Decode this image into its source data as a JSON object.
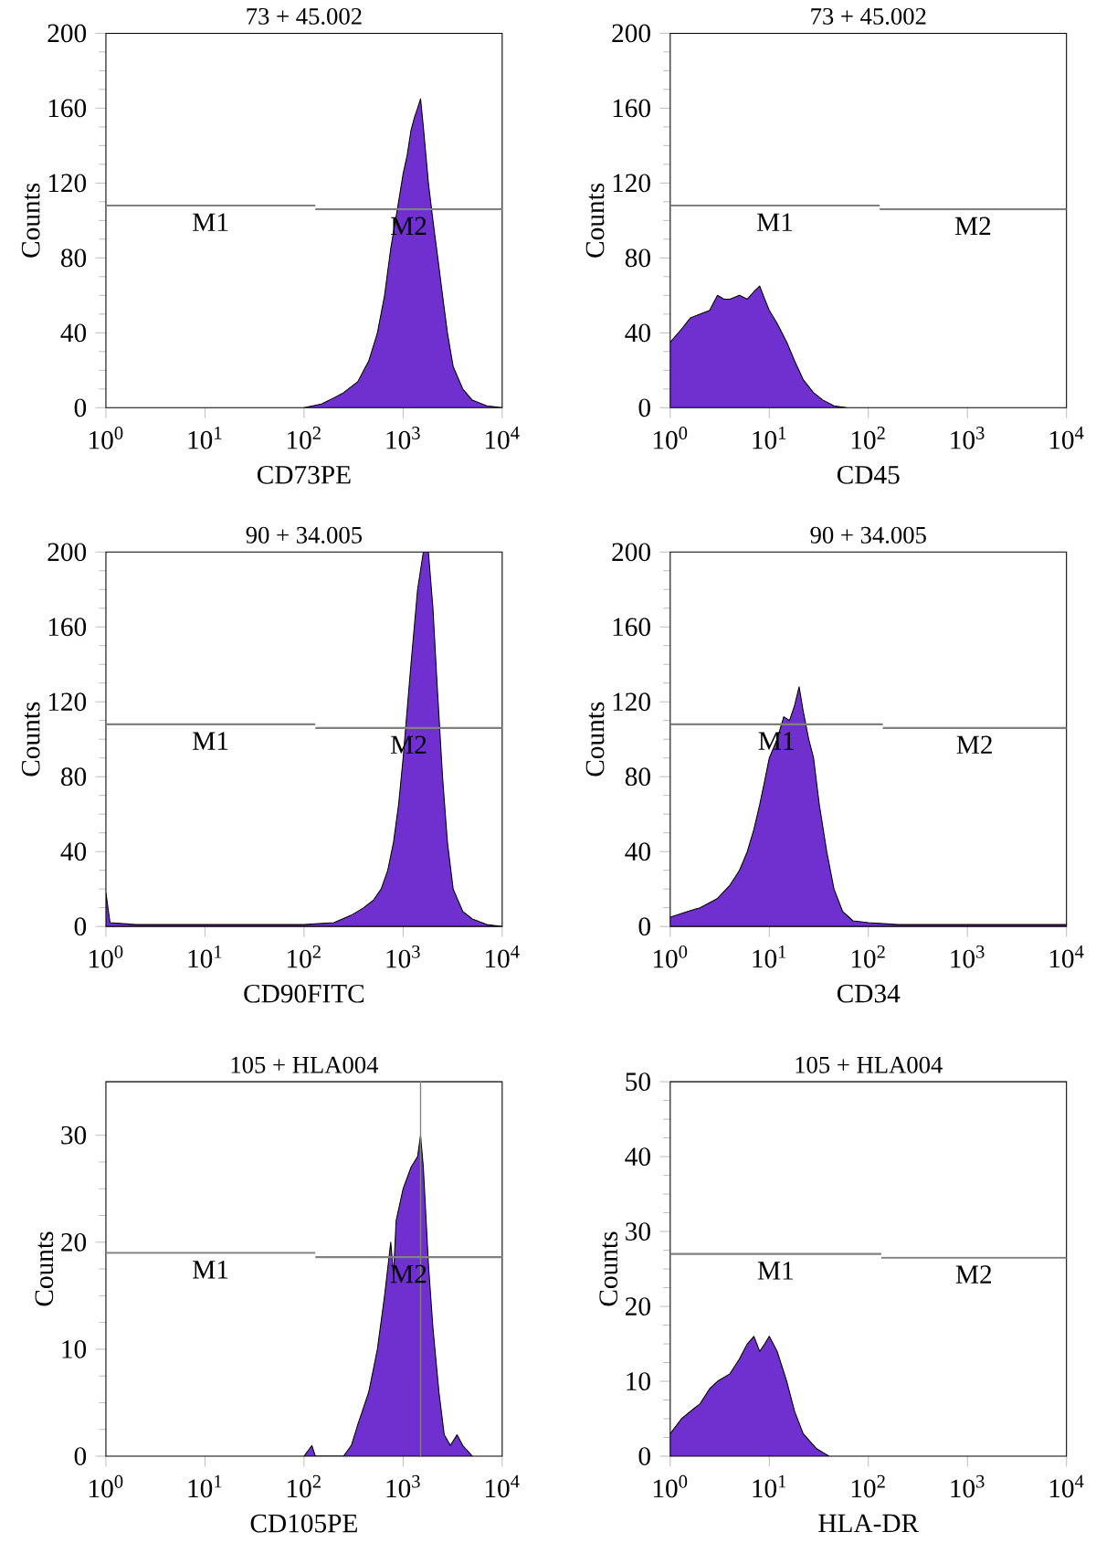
{
  "chart_data": [
    {
      "type": "area",
      "title": "73 + 45.002",
      "xlabel": "CD73PE",
      "ylabel": "Counts",
      "log": "x",
      "xlim": [
        1,
        10000
      ],
      "xticks": [
        {
          "value": 1,
          "label": "10$^{0}$"
        },
        {
          "value": 10,
          "label": "10$^{1}$"
        },
        {
          "value": 100,
          "label": "10$^{2}$"
        },
        {
          "value": 1000,
          "label": "10$^{3}$"
        },
        {
          "value": 10000,
          "label": "10$^{4}$"
        }
      ],
      "ylim": [
        0,
        200
      ],
      "yticks": [
        0,
        40,
        80,
        120,
        160,
        200
      ],
      "series": [
        {
          "color": "#7030d0",
          "x": [
            100,
            150,
            180,
            250,
            350,
            450,
            550,
            650,
            750,
            900,
            1000,
            1100,
            1200,
            1300,
            1400,
            1500,
            1600,
            1800,
            2000,
            2240,
            2500,
            2800,
            3200,
            4000,
            5000,
            7000,
            10000
          ],
          "values": [
            0,
            2,
            4,
            8,
            14,
            25,
            40,
            60,
            85,
            110,
            125,
            135,
            148,
            155,
            160,
            165,
            150,
            120,
            100,
            80,
            60,
            40,
            22,
            10,
            4,
            1,
            0
          ]
        },
        {
          "type": "line",
          "color": "#808080",
          "x": [
            1,
            130
          ],
          "values": [
            108,
            108
          ]
        },
        {
          "type": "line",
          "color": "#808080",
          "x": [
            130,
            10000
          ],
          "values": [
            106,
            106
          ]
        }
      ],
      "annotations": [
        "M1",
        "M2"
      ]
    },
    {
      "type": "area",
      "title": "73 + 45.002",
      "xlabel": "CD45",
      "ylabel": "Counts",
      "log": "x",
      "xlim": [
        1,
        10000
      ],
      "xticks": [
        {
          "value": 1,
          "label": "10$^{0}$"
        },
        {
          "value": 10,
          "label": "10$^{1}$"
        },
        {
          "value": 100,
          "label": "10$^{2}$"
        },
        {
          "value": 1000,
          "label": "10$^{3}$"
        },
        {
          "value": 10000,
          "label": "10$^{4}$"
        }
      ],
      "ylim": [
        0,
        200
      ],
      "yticks": [
        0,
        40,
        80,
        120,
        160,
        200
      ],
      "series": [
        {
          "color": "#7030d0",
          "x": [
            1,
            1.3,
            1.6,
            2,
            2.5,
            3,
            3.5,
            4,
            5,
            6,
            7,
            8,
            9,
            10,
            12,
            15,
            18,
            22,
            28,
            35,
            45,
            60
          ],
          "values": [
            35,
            42,
            48,
            50,
            52,
            60,
            58,
            58,
            60,
            58,
            62,
            65,
            58,
            52,
            45,
            35,
            25,
            15,
            8,
            4,
            1,
            0
          ]
        },
        {
          "type": "line",
          "color": "#808080",
          "x": [
            1,
            130
          ],
          "values": [
            108,
            108
          ]
        },
        {
          "type": "line",
          "color": "#808080",
          "x": [
            130,
            10000
          ],
          "values": [
            106,
            106
          ]
        }
      ],
      "annotations": [
        "M1",
        "M2"
      ]
    },
    {
      "type": "area",
      "title": "90 + 34.005",
      "xlabel": "CD90FITC",
      "ylabel": "Counts",
      "log": "x",
      "xlim": [
        1,
        10000
      ],
      "xticks": [
        {
          "value": 1,
          "label": "10$^{0}$"
        },
        {
          "value": 10,
          "label": "10$^{1}$"
        },
        {
          "value": 100,
          "label": "10$^{2}$"
        },
        {
          "value": 1000,
          "label": "10$^{3}$"
        },
        {
          "value": 10000,
          "label": "10$^{4}$"
        }
      ],
      "ylim": [
        0,
        200
      ],
      "yticks": [
        0,
        40,
        80,
        120,
        160,
        200
      ],
      "series": [
        {
          "color": "#7030d0",
          "x": [
            1,
            1.1,
            2,
            10,
            100,
            200,
            300,
            400,
            500,
            600,
            700,
            800,
            900,
            1000,
            1200,
            1400,
            1600,
            1800,
            2000,
            2200,
            2500,
            2800,
            3200,
            4000,
            5000,
            7000,
            10000
          ],
          "values": [
            18,
            2,
            1,
            1,
            1,
            2,
            6,
            10,
            14,
            20,
            30,
            45,
            65,
            90,
            140,
            180,
            200,
            200,
            170,
            130,
            80,
            45,
            20,
            8,
            4,
            1,
            0
          ]
        },
        {
          "type": "line",
          "color": "#808080",
          "x": [
            1,
            130
          ],
          "values": [
            108,
            108
          ]
        },
        {
          "type": "line",
          "color": "#808080",
          "x": [
            130,
            10000
          ],
          "values": [
            106,
            106
          ]
        }
      ],
      "annotations": [
        "M1",
        "M2"
      ]
    },
    {
      "type": "area",
      "title": "90 + 34.005",
      "xlabel": "CD34",
      "ylabel": "Counts",
      "log": "x",
      "xlim": [
        1,
        10000
      ],
      "xticks": [
        {
          "value": 1,
          "label": "10$^{0}$"
        },
        {
          "value": 10,
          "label": "10$^{1}$"
        },
        {
          "value": 100,
          "label": "10$^{2}$"
        },
        {
          "value": 1000,
          "label": "10$^{3}$"
        },
        {
          "value": 10000,
          "label": "10$^{4}$"
        }
      ],
      "ylim": [
        0,
        200
      ],
      "yticks": [
        0,
        40,
        80,
        120,
        160,
        200
      ],
      "series": [
        {
          "color": "#7030d0",
          "x": [
            1,
            1.5,
            2,
            3,
            4,
            5,
            6,
            7,
            8,
            9,
            10,
            12,
            14,
            16,
            18,
            20,
            22,
            25,
            28,
            32,
            38,
            45,
            55,
            70,
            100,
            200,
            1000,
            10000
          ],
          "values": [
            5,
            8,
            10,
            15,
            22,
            30,
            40,
            52,
            65,
            78,
            90,
            100,
            112,
            110,
            118,
            128,
            115,
            100,
            90,
            65,
            40,
            20,
            8,
            3,
            2,
            1,
            1,
            1
          ]
        },
        {
          "type": "line",
          "color": "#808080",
          "x": [
            1,
            140
          ],
          "values": [
            108,
            108
          ]
        },
        {
          "type": "line",
          "color": "#808080",
          "x": [
            140,
            10000
          ],
          "values": [
            106,
            106
          ]
        }
      ],
      "annotations": [
        "M1",
        "M2"
      ]
    },
    {
      "type": "area",
      "title": "105 + HLA004",
      "xlabel": "CD105PE",
      "ylabel": "Counts",
      "log": "x",
      "xlim": [
        1,
        10000
      ],
      "xticks": [
        {
          "value": 1,
          "label": "10$^{0}$"
        },
        {
          "value": 10,
          "label": "10$^{1}$"
        },
        {
          "value": 100,
          "label": "10$^{2}$"
        },
        {
          "value": 1000,
          "label": "10$^{3}$"
        },
        {
          "value": 10000,
          "label": "10$^{4}$"
        }
      ],
      "ylim": [
        0,
        35
      ],
      "yticks": [
        0,
        10,
        20,
        30
      ],
      "series": [
        {
          "color": "#7030d0",
          "x": [
            100,
            120,
            130,
            250,
            300,
            350,
            450,
            550,
            650,
            750,
            800,
            850,
            1000,
            1200,
            1400,
            1500,
            1600,
            1800,
            2000,
            2300,
            2600,
            3000,
            3500,
            4000,
            5000
          ],
          "values": [
            0,
            1,
            0,
            0,
            1,
            3,
            6,
            10,
            15,
            20,
            17,
            22,
            25,
            27,
            28,
            30,
            27,
            18,
            12,
            6,
            2,
            1,
            2,
            1,
            0
          ]
        },
        {
          "type": "line",
          "color": "#808080",
          "x": [
            1,
            130
          ],
          "values": [
            19,
            19
          ]
        },
        {
          "type": "line",
          "color": "#808080",
          "x": [
            130,
            10000
          ],
          "values": [
            18.6,
            18.6
          ]
        }
      ],
      "ref_lines": [
        {
          "axis": "x",
          "value": 1500,
          "color": "#808080"
        }
      ],
      "annotations": [
        "M1",
        "M2"
      ]
    },
    {
      "type": "area",
      "title": "105 + HLA004",
      "xlabel": "HLA-DR",
      "ylabel": "Counts",
      "log": "x",
      "xlim": [
        1,
        10000
      ],
      "xticks": [
        {
          "value": 1,
          "label": "10$^{0}$"
        },
        {
          "value": 10,
          "label": "10$^{1}$"
        },
        {
          "value": 100,
          "label": "10$^{2}$"
        },
        {
          "value": 1000,
          "label": "10$^{3}$"
        },
        {
          "value": 10000,
          "label": "10$^{4}$"
        }
      ],
      "ylim": [
        0,
        50
      ],
      "yticks": [
        0,
        10,
        20,
        30,
        40,
        50
      ],
      "series": [
        {
          "color": "#7030d0",
          "x": [
            1,
            1.3,
            1.6,
            2,
            2.5,
            3,
            4,
            5,
            6,
            7,
            8,
            9,
            10,
            12,
            15,
            18,
            22,
            30,
            40
          ],
          "values": [
            3,
            5,
            6,
            7,
            9,
            10,
            11,
            13,
            15,
            16,
            14,
            15,
            16,
            14,
            10,
            6,
            3,
            1,
            0
          ]
        },
        {
          "type": "line",
          "color": "#808080",
          "x": [
            1,
            135
          ],
          "values": [
            27,
            27
          ]
        },
        {
          "type": "line",
          "color": "#808080",
          "x": [
            135,
            10000
          ],
          "values": [
            26.5,
            26.5
          ]
        }
      ],
      "annotations": [
        "M1",
        "M2"
      ]
    }
  ]
}
